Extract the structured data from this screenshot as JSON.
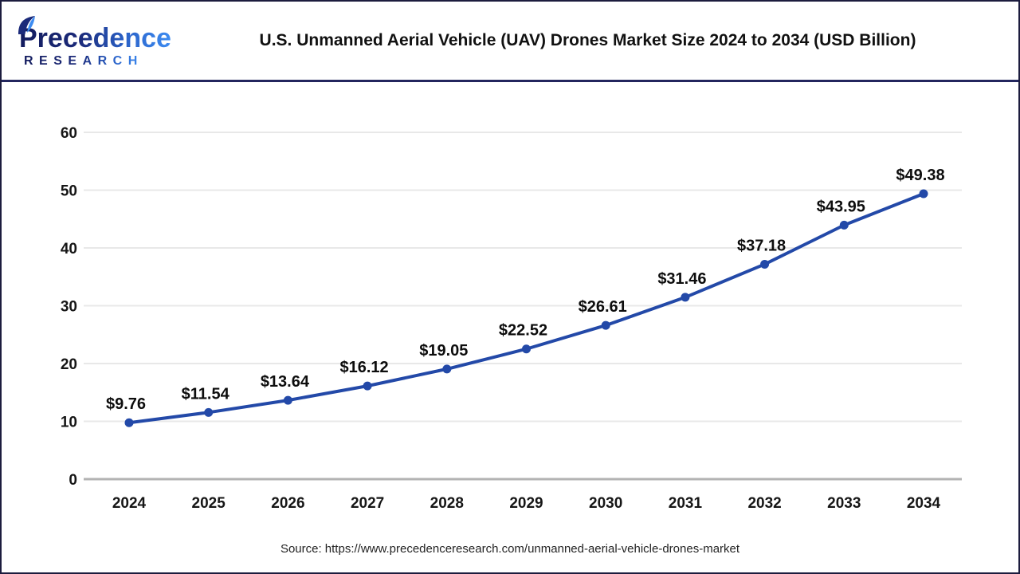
{
  "header": {
    "logo": {
      "brand_line1": "Precedence",
      "brand_line2": "RESEARCH"
    },
    "title": "U.S. Unmanned Aerial Vehicle (UAV) Drones Market Size 2024 to 2034 (USD Billion)"
  },
  "chart_data": {
    "type": "line",
    "title": "U.S. Unmanned Aerial Vehicle (UAV) Drones Market Size 2024 to 2034 (USD Billion)",
    "categories": [
      "2024",
      "2025",
      "2026",
      "2027",
      "2028",
      "2029",
      "2030",
      "2031",
      "2032",
      "2033",
      "2034"
    ],
    "values": [
      9.76,
      11.54,
      13.64,
      16.12,
      19.05,
      22.52,
      26.61,
      31.46,
      37.18,
      43.95,
      49.38
    ],
    "data_labels": [
      "$9.76",
      "$11.54",
      "$13.64",
      "$16.12",
      "$19.05",
      "$22.52",
      "$26.61",
      "$31.46",
      "$37.18",
      "$43.95",
      "$49.38"
    ],
    "unit": "USD Billion",
    "xlabel": "",
    "ylabel": "",
    "ylim": [
      0,
      60
    ],
    "yticks": [
      0,
      10,
      20,
      30,
      40,
      50,
      60
    ],
    "grid": true,
    "legend": "none",
    "line_color": "#2349a8",
    "marker_color": "#2349a8"
  },
  "footer": {
    "source": "Source: https://www.precedenceresearch.com/unmanned-aerial-vehicle-drones-market"
  },
  "colors": {
    "accent_line": "#2349a8",
    "divider_navy": "#23265e",
    "grid_gray": "#e8e8e8",
    "axis_gray": "#b3b3b3",
    "text_black": "#111111"
  }
}
